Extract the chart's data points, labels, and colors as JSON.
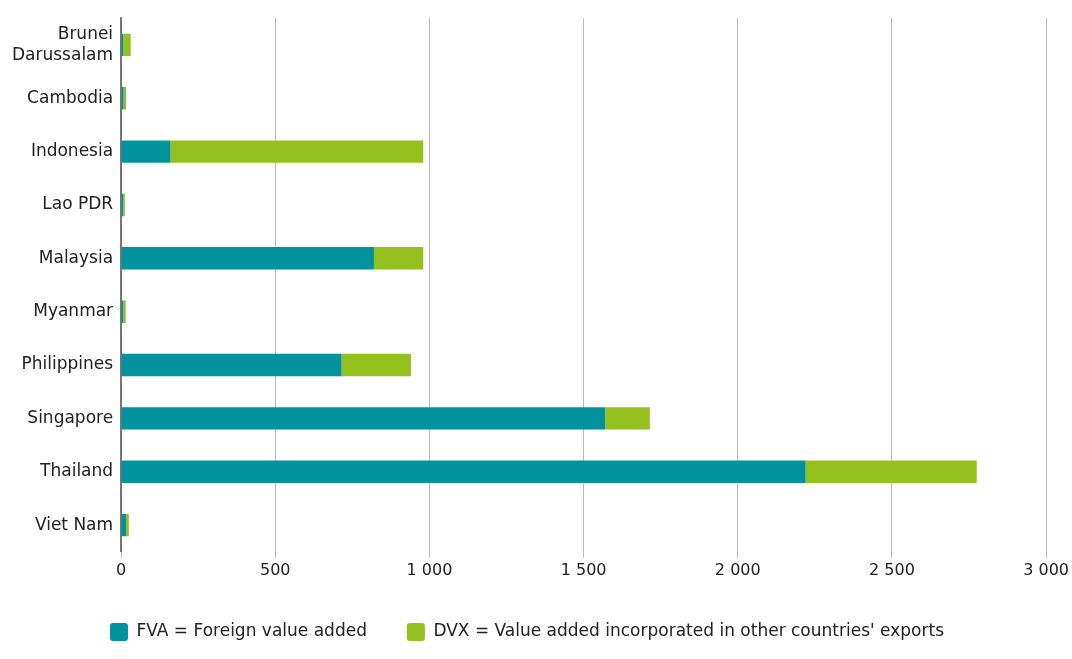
{
  "chart_data": {
    "type": "bar",
    "orientation": "horizontal",
    "stacked": true,
    "categories": [
      "Brunei Darussalam",
      "Cambodia",
      "Indonesia",
      "Lao PDR",
      "Malaysia",
      "Myanmar",
      "Philippines",
      "Singapore",
      "Thailand",
      "Viet Nam"
    ],
    "series": [
      {
        "name": "FVA = Foreign value added",
        "color": "#00939e",
        "values": [
          7,
          8,
          160,
          7,
          820,
          7,
          715,
          1570,
          2220,
          16
        ]
      },
      {
        "name": "DVX = Value added incorporated in other countries' exports",
        "color": "#95c11f",
        "values": [
          24,
          8,
          820,
          5,
          160,
          8,
          225,
          145,
          555,
          9
        ]
      }
    ],
    "xlim": [
      0,
      3000
    ],
    "xticks": [
      0,
      {
        "value": 500,
        "label": "500"
      },
      {
        "value": 1000,
        "label": "1 000"
      },
      {
        "value": 1500,
        "label": "1 500"
      },
      {
        "value": 2000,
        "label": "2 000"
      },
      {
        "value": 2500,
        "label": "2 500"
      },
      {
        "value": 3000,
        "label": "3 000"
      }
    ],
    "grid": "x",
    "legend": "bottom"
  }
}
